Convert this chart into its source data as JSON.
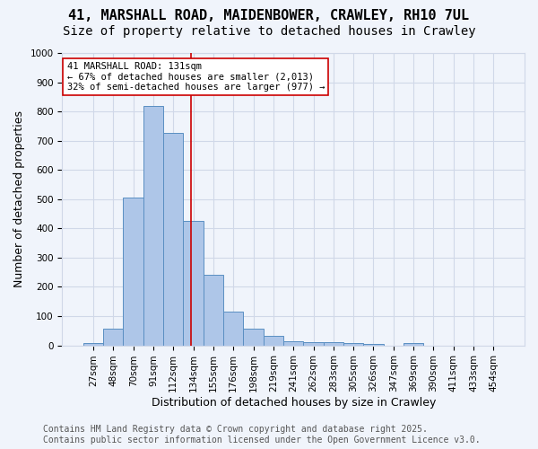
{
  "title_line1": "41, MARSHALL ROAD, MAIDENBOWER, CRAWLEY, RH10 7UL",
  "title_line2": "Size of property relative to detached houses in Crawley",
  "xlabel": "Distribution of detached houses by size in Crawley",
  "ylabel": "Number of detached properties",
  "categories": [
    "27sqm",
    "48sqm",
    "70sqm",
    "91sqm",
    "112sqm",
    "134sqm",
    "155sqm",
    "176sqm",
    "198sqm",
    "219sqm",
    "241sqm",
    "262sqm",
    "283sqm",
    "305sqm",
    "326sqm",
    "347sqm",
    "369sqm",
    "390sqm",
    "411sqm",
    "433sqm",
    "454sqm"
  ],
  "values": [
    8,
    57,
    507,
    820,
    727,
    425,
    240,
    117,
    57,
    32,
    13,
    10,
    12,
    7,
    4,
    0,
    7,
    0,
    0,
    0,
    0
  ],
  "bar_color": "#aec6e8",
  "bar_edge_color": "#5a8fc2",
  "grid_color": "#d0d8e8",
  "background_color": "#f0f4fb",
  "red_line_color": "#cc0000",
  "annotation_text": "41 MARSHALL ROAD: 131sqm\n← 67% of detached houses are smaller (2,013)\n32% of semi-detached houses are larger (977) →",
  "annotation_box_color": "#ffffff",
  "annotation_box_edge": "#cc0000",
  "ylim": [
    0,
    1000
  ],
  "yticks": [
    0,
    100,
    200,
    300,
    400,
    500,
    600,
    700,
    800,
    900,
    1000
  ],
  "footer_line1": "Contains HM Land Registry data © Crown copyright and database right 2025.",
  "footer_line2": "Contains public sector information licensed under the Open Government Licence v3.0.",
  "title_fontsize": 11,
  "subtitle_fontsize": 10,
  "axis_label_fontsize": 9,
  "tick_fontsize": 7.5,
  "annotation_fontsize": 7.5,
  "footer_fontsize": 7
}
